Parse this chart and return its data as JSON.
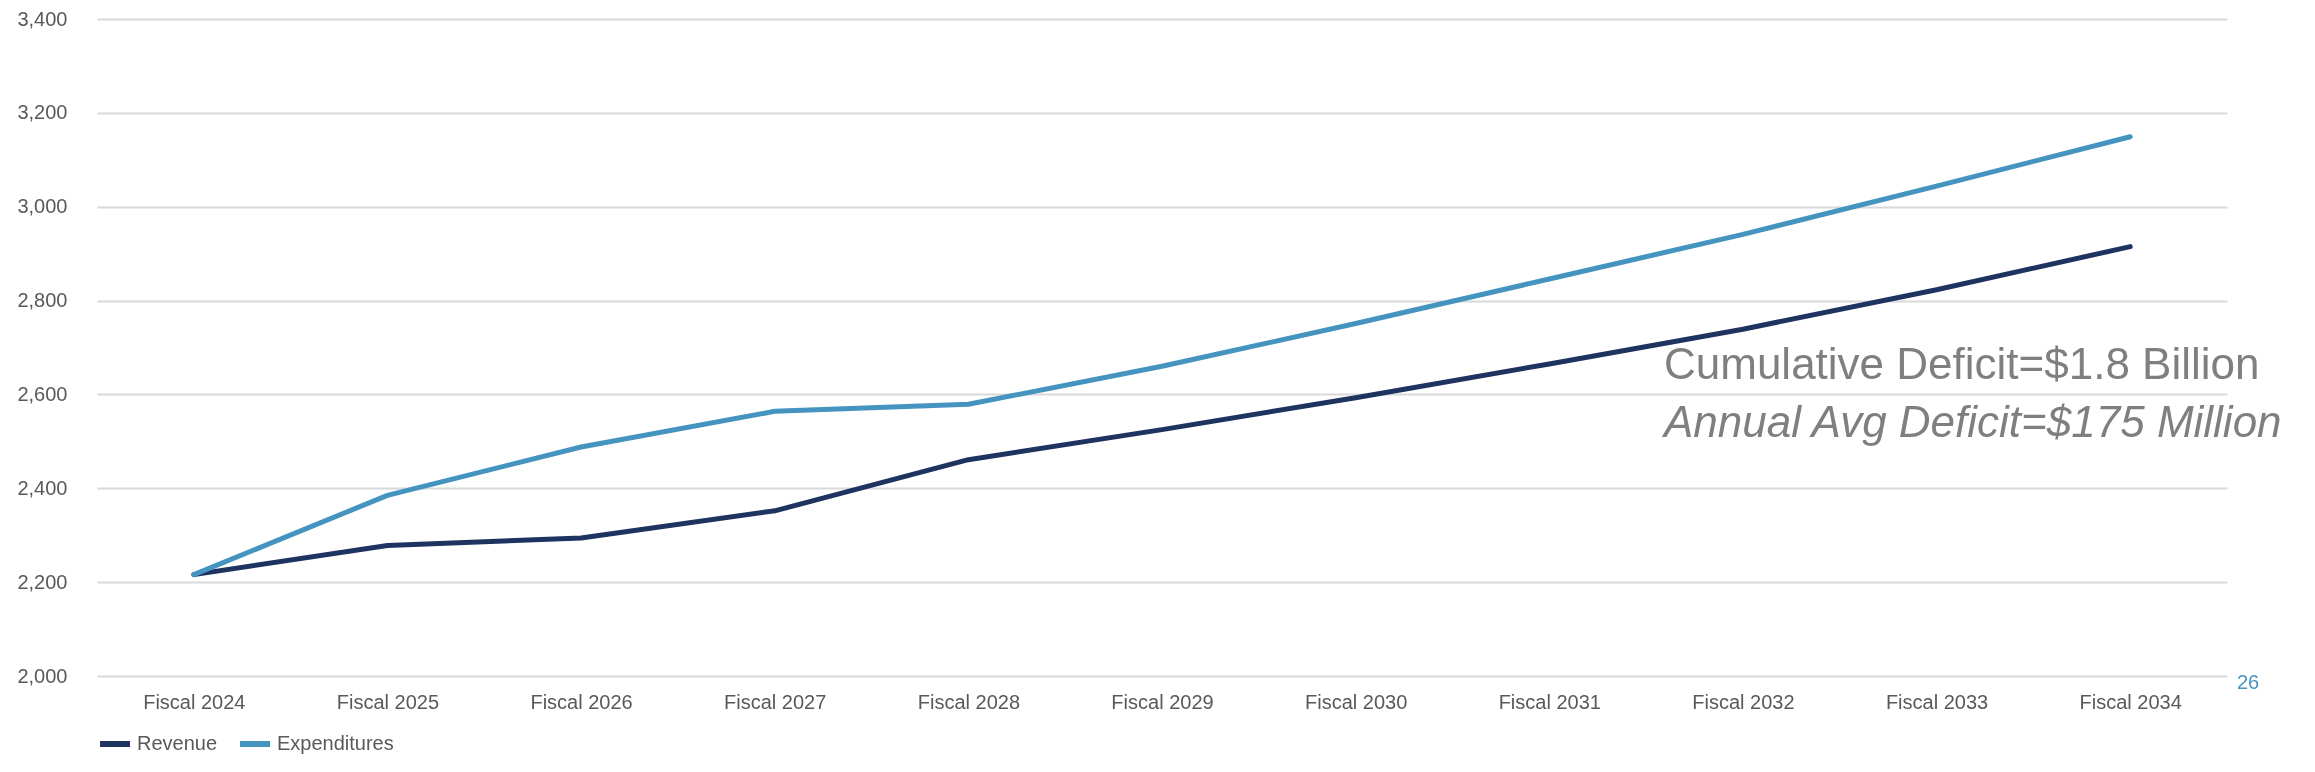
{
  "chart_data": {
    "type": "line",
    "categories": [
      "Fiscal 2024",
      "Fiscal 2025",
      "Fiscal 2026",
      "Fiscal 2027",
      "Fiscal 2028",
      "Fiscal 2029",
      "Fiscal 2030",
      "Fiscal 2031",
      "Fiscal 2032",
      "Fiscal 2033",
      "Fiscal 2034"
    ],
    "series": [
      {
        "name": "Revenue",
        "color": "#1f3360",
        "values": [
          2216,
          2278,
          2294,
          2352,
          2461,
          2525,
          2593,
          2665,
          2739,
          2823,
          2915
        ]
      },
      {
        "name": "Expenditures",
        "color": "#4594c0",
        "values": [
          2216,
          2385,
          2488,
          2564,
          2579,
          2660,
          2751,
          2846,
          2941,
          3044,
          3149
        ]
      }
    ],
    "ylim": [
      2000,
      3400
    ],
    "yticks": [
      {
        "value": 2000,
        "label": "2,000"
      },
      {
        "value": 2200,
        "label": "2,200"
      },
      {
        "value": 2400,
        "label": "2,400"
      },
      {
        "value": 2600,
        "label": "2,600"
      },
      {
        "value": 2800,
        "label": "2,800"
      },
      {
        "value": 3000,
        "label": "3,000"
      },
      {
        "value": 3200,
        "label": "3,200"
      },
      {
        "value": 3400,
        "label": "3,400"
      }
    ],
    "grid": "y",
    "legend": "bottom",
    "marker": "none",
    "line_style": "solid",
    "annotations": [
      "Cumulative Deficit=$1.8 Billion",
      "Annual Avg Deficit=$175 Million",
      "26"
    ]
  }
}
